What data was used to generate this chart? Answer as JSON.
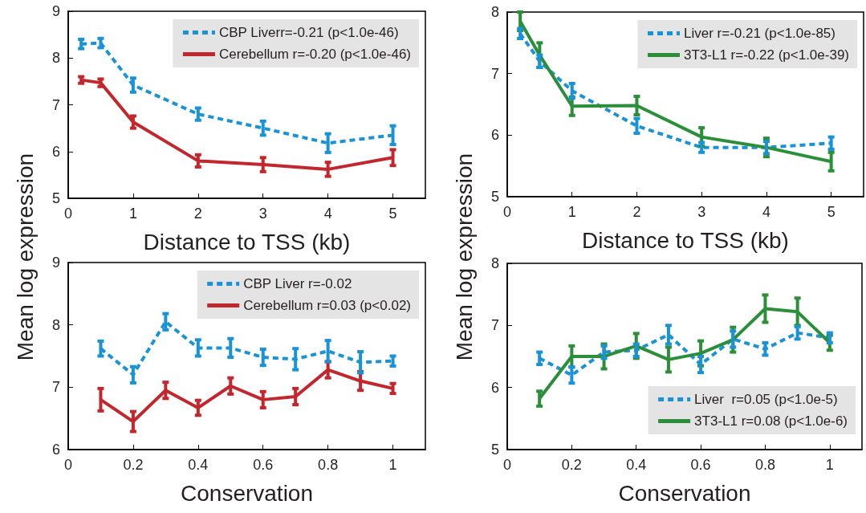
{
  "chart_data": [
    {
      "type": "line",
      "xlabel": "Distance to TSS (kb)",
      "ylabel": "Mean log expression",
      "x": [
        0.2,
        0.5,
        1,
        2,
        3,
        4,
        5
      ],
      "xlim": [
        0,
        5.5
      ],
      "xticks": [
        0,
        1,
        2,
        3,
        4,
        5
      ],
      "ylim": [
        5,
        9
      ],
      "yticks": [
        5,
        6,
        7,
        8,
        9
      ],
      "grid": false,
      "legend": "top right",
      "marker": "none",
      "series": [
        {
          "name": "CBP Liverr=-0.21 (p<1.0e-46)",
          "color": "#1a93d6",
          "line_style": "dashed",
          "values": [
            8.3,
            8.32,
            7.42,
            6.8,
            6.5,
            6.18,
            6.35
          ],
          "errors": [
            0.1,
            0.1,
            0.15,
            0.13,
            0.15,
            0.2,
            0.2
          ]
        },
        {
          "name": "Cerebellum r=-0.20 (p<1.0e-46)",
          "color": "#c1272d",
          "line_style": "solid",
          "values": [
            7.53,
            7.47,
            6.63,
            5.8,
            5.72,
            5.62,
            5.87
          ],
          "errors": [
            0.07,
            0.08,
            0.13,
            0.13,
            0.15,
            0.15,
            0.17
          ]
        }
      ]
    },
    {
      "type": "line",
      "xlabel": "Distance to TSS (kb)",
      "ylabel": "Mean log expression",
      "x": [
        0.2,
        0.5,
        1,
        2,
        3,
        4,
        5
      ],
      "xlim": [
        0,
        5.5
      ],
      "xticks": [
        0,
        1,
        2,
        3,
        4,
        5
      ],
      "ylim": [
        5,
        8
      ],
      "yticks": [
        5,
        6,
        7,
        8
      ],
      "grid": false,
      "legend": "top right",
      "marker": "none",
      "series": [
        {
          "name": "Liver r=-0.21 (p<1.0e-85)",
          "color": "#1a93d6",
          "line_style": "dashed",
          "values": [
            7.65,
            7.2,
            6.72,
            6.15,
            5.8,
            5.8,
            5.87
          ],
          "errors": [
            0.08,
            0.1,
            0.12,
            0.12,
            0.08,
            0.1,
            0.1
          ]
        },
        {
          "name": "3T3-L1 r=-0.22 (p<1.0e-39)",
          "color": "#2b8f3a",
          "line_style": "solid",
          "values": [
            7.85,
            7.3,
            6.47,
            6.48,
            5.97,
            5.8,
            5.57
          ],
          "errors": [
            0.15,
            0.2,
            0.15,
            0.15,
            0.15,
            0.15,
            0.15
          ]
        }
      ]
    },
    {
      "type": "line",
      "xlabel": "Conservation",
      "x": [
        0.1,
        0.2,
        0.3,
        0.4,
        0.5,
        0.6,
        0.7,
        0.8,
        0.9,
        1
      ],
      "xlim": [
        0,
        1.1
      ],
      "xticks": [
        0,
        0.2,
        0.4,
        0.6,
        0.8,
        1
      ],
      "ylim": [
        6,
        9
      ],
      "yticks": [
        6,
        7,
        8,
        9
      ],
      "grid": false,
      "legend": "top right",
      "marker": "none",
      "series": [
        {
          "name": "CBP Liver r=-0.02",
          "color": "#1a93d6",
          "line_style": "dashed",
          "values": [
            7.62,
            7.2,
            8.05,
            7.63,
            7.63,
            7.48,
            7.45,
            7.58,
            7.4,
            7.42
          ],
          "errors": [
            0.12,
            0.13,
            0.13,
            0.13,
            0.15,
            0.13,
            0.17,
            0.17,
            0.17,
            0.08
          ]
        },
        {
          "name": "Cerebellum r=0.03 (p<0.02)",
          "color": "#c1272d",
          "line_style": "solid",
          "values": [
            6.8,
            6.45,
            6.95,
            6.67,
            7.02,
            6.8,
            6.85,
            7.28,
            7.1,
            6.98
          ],
          "errors": [
            0.18,
            0.16,
            0.13,
            0.12,
            0.13,
            0.13,
            0.13,
            0.13,
            0.15,
            0.08
          ]
        }
      ]
    },
    {
      "type": "line",
      "xlabel": "Conservation",
      "x": [
        0.1,
        0.2,
        0.3,
        0.4,
        0.5,
        0.6,
        0.7,
        0.8,
        0.9,
        1
      ],
      "xlim": [
        0,
        1.1
      ],
      "xticks": [
        0,
        0.2,
        0.4,
        0.6,
        0.8,
        1
      ],
      "ylim": [
        5,
        8
      ],
      "yticks": [
        5,
        6,
        7,
        8
      ],
      "grid": false,
      "legend": "bottom right",
      "marker": "none",
      "series": [
        {
          "name": "Liver  r=0.05 (p<1.0e-5)",
          "color": "#1a93d6",
          "line_style": "dashed",
          "values": [
            6.47,
            6.2,
            6.57,
            6.6,
            6.85,
            6.37,
            6.78,
            6.62,
            6.88,
            6.8
          ],
          "errors": [
            0.1,
            0.13,
            0.1,
            0.1,
            0.15,
            0.13,
            0.13,
            0.1,
            0.1,
            0.08
          ]
        },
        {
          "name": "3T3-L1 r=0.08 (p<1.0e-6)",
          "color": "#2b8f3a",
          "line_style": "solid",
          "values": [
            5.82,
            6.5,
            6.5,
            6.67,
            6.45,
            6.55,
            6.77,
            7.27,
            7.22,
            6.72
          ],
          "errors": [
            0.12,
            0.17,
            0.2,
            0.2,
            0.2,
            0.2,
            0.2,
            0.22,
            0.22,
            0.12
          ]
        }
      ]
    }
  ]
}
